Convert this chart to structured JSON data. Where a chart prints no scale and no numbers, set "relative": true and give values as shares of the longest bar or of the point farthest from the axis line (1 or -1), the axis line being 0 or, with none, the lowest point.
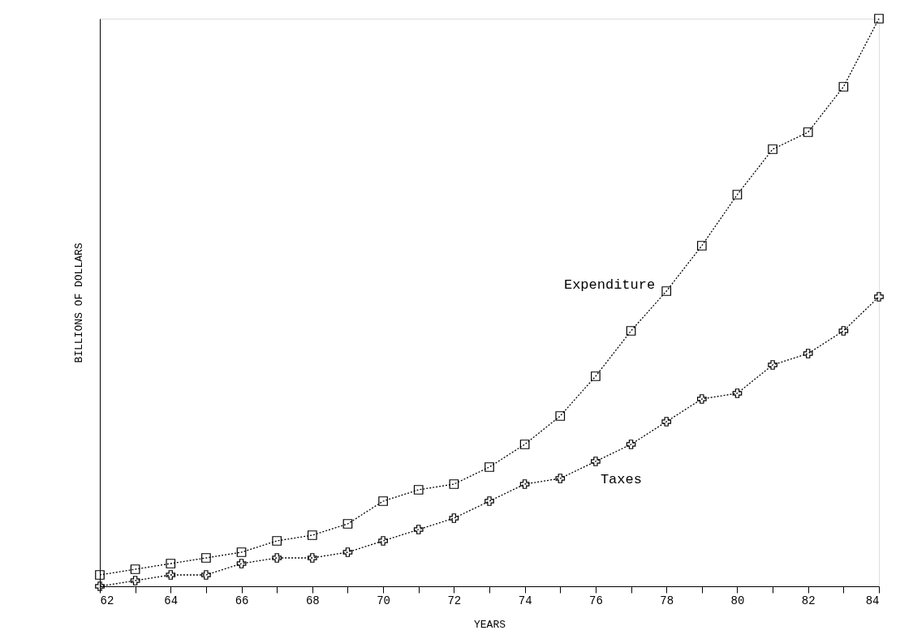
{
  "chart_data": {
    "type": "line",
    "xlabel": "YEARS",
    "ylabel": "BILLIONS OF DOLLARS",
    "relative": true,
    "x": [
      62,
      63,
      64,
      65,
      66,
      67,
      68,
      69,
      70,
      71,
      72,
      73,
      74,
      75,
      76,
      77,
      78,
      79,
      80,
      81,
      82,
      83,
      84
    ],
    "xlim": [
      62,
      84
    ],
    "xticks": [
      62,
      {
        "value": 63,
        "label": null
      },
      64,
      {
        "value": 65,
        "label": null
      },
      66,
      {
        "value": 67,
        "label": null
      },
      68,
      {
        "value": 69,
        "label": null
      },
      70,
      {
        "value": 71,
        "label": null
      },
      72,
      {
        "value": 73,
        "label": null
      },
      74,
      {
        "value": 75,
        "label": null
      },
      76,
      {
        "value": 77,
        "label": null
      },
      78,
      {
        "value": 79,
        "label": null
      },
      80,
      {
        "value": 81,
        "label": null
      },
      82,
      {
        "value": 83,
        "label": null
      },
      84
    ],
    "series": [
      {
        "name": "Expenditure",
        "color": "#000000",
        "marker": "square",
        "values": [
          0.02,
          0.03,
          0.04,
          0.05,
          0.06,
          0.08,
          0.09,
          0.11,
          0.15,
          0.17,
          0.18,
          0.21,
          0.25,
          0.3,
          0.37,
          0.45,
          0.52,
          0.6,
          0.69,
          0.77,
          0.8,
          0.88,
          1.0
        ]
      },
      {
        "name": "Taxes",
        "color": "#000000",
        "marker": "cross",
        "values": [
          0.0,
          0.01,
          0.02,
          0.02,
          0.04,
          0.05,
          0.05,
          0.06,
          0.08,
          0.1,
          0.12,
          0.15,
          0.18,
          0.19,
          0.22,
          0.25,
          0.29,
          0.33,
          0.34,
          0.39,
          0.41,
          0.45,
          0.51
        ]
      }
    ],
    "line_style": "dotted",
    "grid": false
  }
}
